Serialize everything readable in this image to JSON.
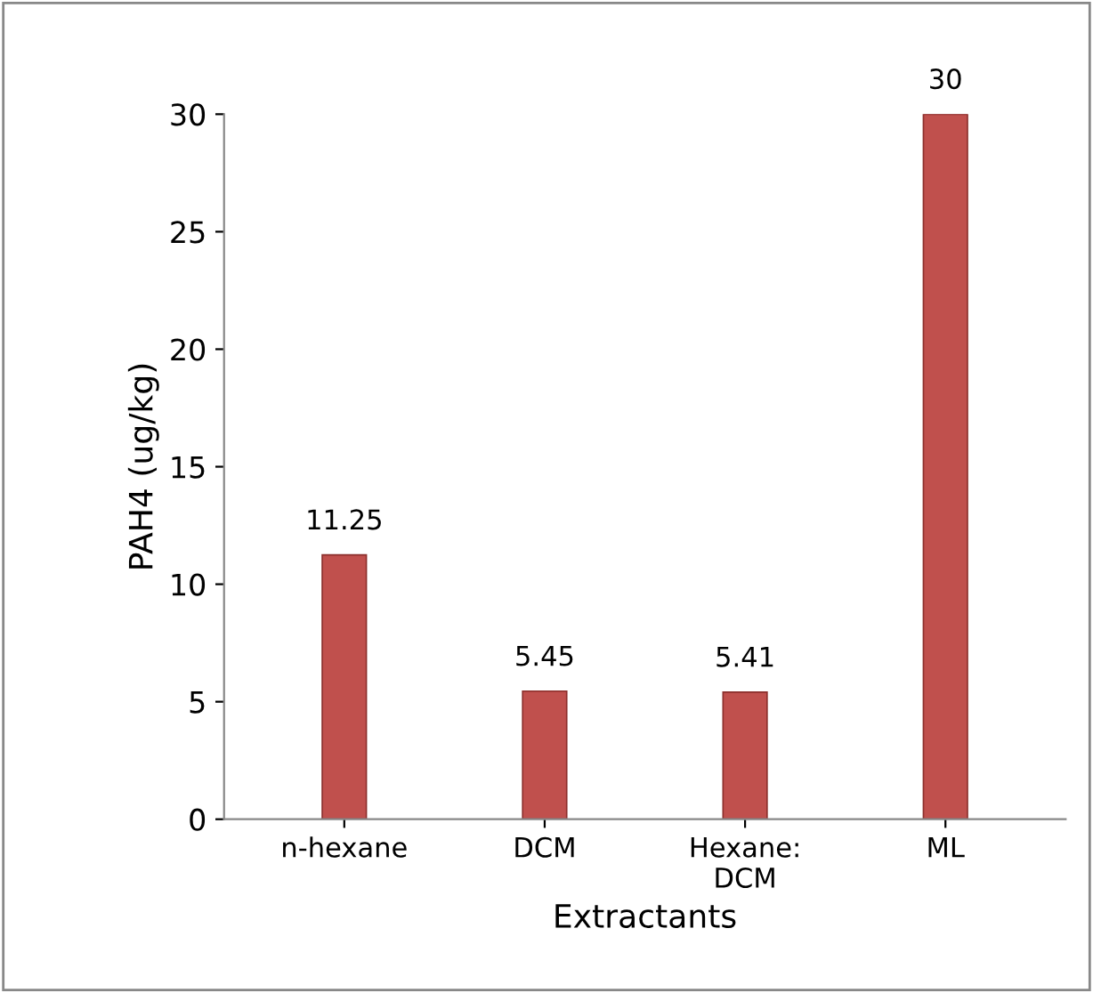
{
  "chart_data": {
    "type": "bar",
    "xlabel": "Extractants",
    "ylabel": "PAH4 (ug/kg)",
    "categories": [
      "n-hexane",
      "DCM",
      "Hexane:\nDCM",
      "ML"
    ],
    "values": [
      11.25,
      5.45,
      5.41,
      30
    ],
    "color": "#c0504d",
    "ylim": [
      0,
      30
    ],
    "yticks": [
      0,
      5,
      10,
      15,
      20,
      25,
      30
    ],
    "data_labels": true,
    "grid": false
  }
}
